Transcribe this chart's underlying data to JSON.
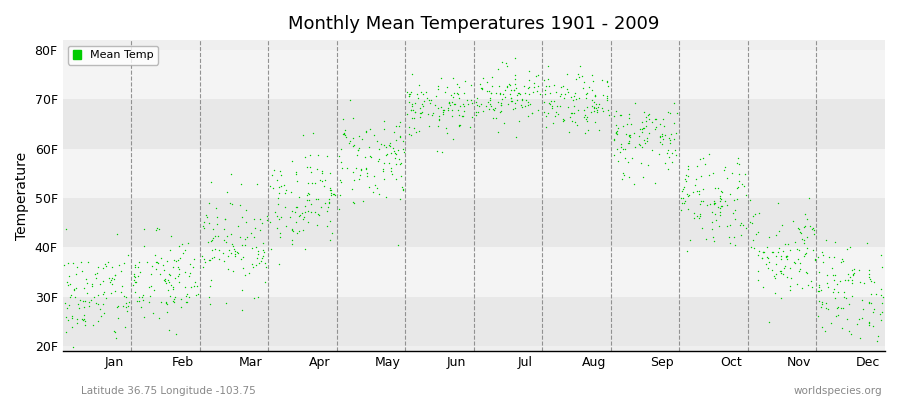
{
  "title": "Monthly Mean Temperatures 1901 - 2009",
  "ylabel": "Temperature",
  "subtitle": "Latitude 36.75 Longitude -103.75",
  "watermark": "worldspecies.org",
  "months": [
    "Jan",
    "Feb",
    "Mar",
    "Apr",
    "May",
    "Jun",
    "Jul",
    "Aug",
    "Sep",
    "Oct",
    "Nov",
    "Dec"
  ],
  "yticks": [
    20,
    30,
    40,
    50,
    60,
    70,
    80
  ],
  "ylim": [
    19,
    82
  ],
  "xlim": [
    0,
    12
  ],
  "dot_color": "#00cc00",
  "legend_label": "Mean Temp",
  "plot_bg_color": "#efefef",
  "monthly_means": [
    30,
    33,
    41,
    50,
    58,
    68,
    71,
    69,
    62,
    50,
    39,
    31
  ],
  "monthly_stds": [
    5,
    5,
    5,
    5,
    5,
    3,
    3,
    3,
    4,
    5,
    5,
    5
  ],
  "n_years": 109,
  "seed": 42
}
